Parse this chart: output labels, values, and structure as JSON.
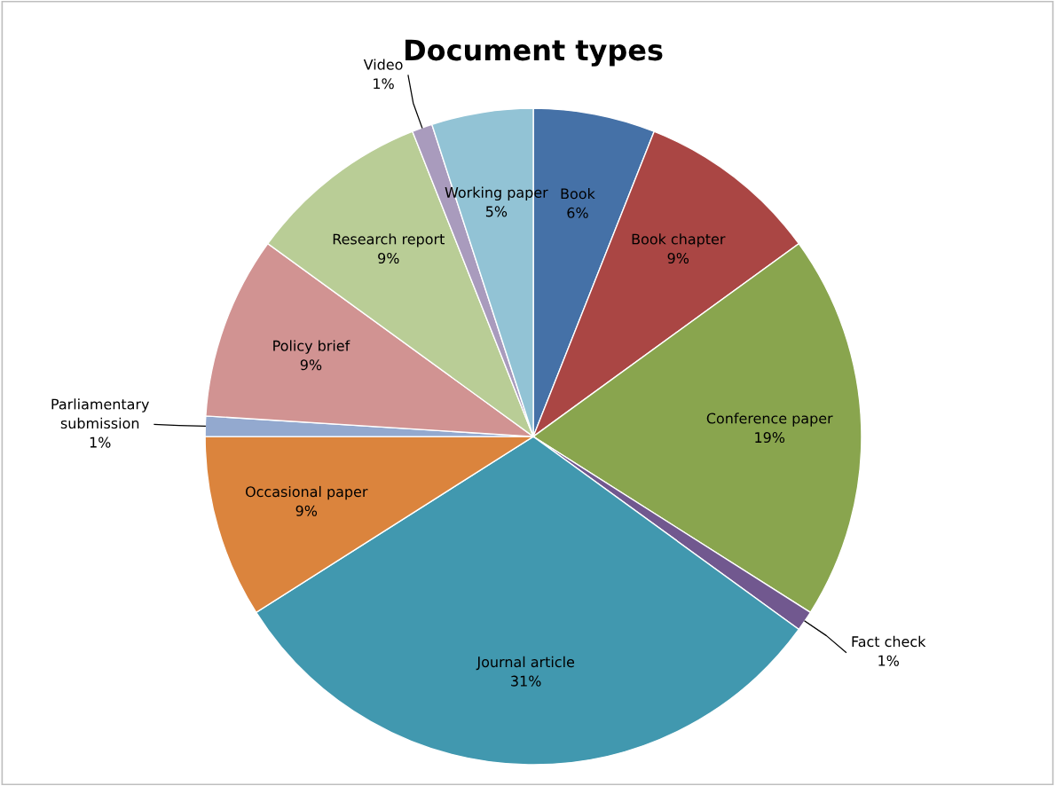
{
  "chart_data": {
    "type": "pie",
    "title": "Document types",
    "categories": [
      "Book",
      "Book chapter",
      "Conference paper",
      "Fact check",
      "Journal article",
      "Occasional paper",
      "Parliamentary submission",
      "Policy brief",
      "Research report",
      "Video",
      "Working paper"
    ],
    "values": [
      6,
      9,
      19,
      1,
      31,
      9,
      1,
      9,
      9,
      1,
      5
    ],
    "value_labels": [
      "6%",
      "9%",
      "19%",
      "1%",
      "31%",
      "9%",
      "1%",
      "9%",
      "9%",
      "1%",
      "5%"
    ],
    "colors": [
      "#4571a7",
      "#aa4644",
      "#89a54e",
      "#71588f",
      "#4198af",
      "#db843d",
      "#93a9cf",
      "#d19392",
      "#b9cd96",
      "#a99bbd",
      "#92c3d5"
    ],
    "legend": false
  }
}
